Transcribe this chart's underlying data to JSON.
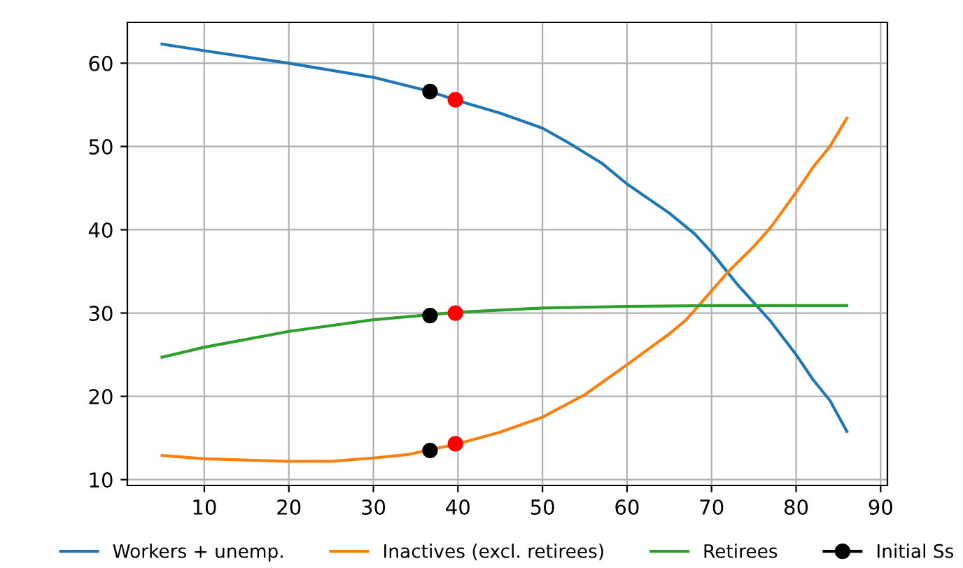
{
  "chart_data": {
    "type": "line",
    "xlim": [
      0.9,
      90.8
    ],
    "ylim": [
      9.3,
      64.9
    ],
    "xticks": [
      10,
      20,
      30,
      40,
      50,
      60,
      70,
      80,
      90
    ],
    "yticks": [
      10,
      20,
      30,
      40,
      50,
      60
    ],
    "grid": true,
    "legend": "bottom",
    "series": [
      {
        "name": "Workers + unemp.",
        "color": "#1f77b4",
        "x": [
          5,
          10,
          20,
          30,
          36.7,
          40,
          45,
          50,
          53,
          57,
          60,
          65,
          68,
          70,
          73,
          77,
          80,
          82,
          84,
          86
        ],
        "values": [
          62.3,
          61.5,
          60.0,
          58.3,
          56.6,
          55.5,
          54,
          52.2,
          50.5,
          48,
          45.5,
          42,
          39.5,
          37.3,
          33.5,
          29,
          25,
          22,
          19.5,
          15.8
        ]
      },
      {
        "name": "Inactives (excl. retirees)",
        "color": "#ff7f0e",
        "x": [
          5,
          10,
          20,
          25,
          30,
          34,
          40,
          45,
          50,
          55,
          60,
          65,
          67,
          69,
          72,
          75,
          77,
          80,
          82,
          84,
          86
        ],
        "values": [
          12.9,
          12.5,
          12.2,
          12.2,
          12.6,
          13.0,
          14.3,
          15.7,
          17.5,
          20.2,
          23.8,
          27.5,
          29.2,
          31.5,
          35,
          38,
          40.3,
          44.5,
          47.5,
          50,
          53.4
        ]
      },
      {
        "name": "Retirees",
        "color": "#2ca02c",
        "x": [
          5,
          10,
          20,
          30,
          36.7,
          40,
          50,
          60,
          70,
          86
        ],
        "values": [
          24.7,
          25.9,
          27.8,
          29.2,
          29.8,
          30.1,
          30.6,
          30.8,
          30.9,
          30.9
        ]
      },
      {
        "name": "Initial Ss",
        "type": "scatter",
        "marker": "circle",
        "color": "#000000",
        "x": [
          36.7,
          36.7,
          36.7
        ],
        "values": [
          56.6,
          29.7,
          13.5
        ]
      },
      {
        "type": "scatter",
        "marker": "circle",
        "color": "#ff0000",
        "x": [
          39.7,
          39.7,
          39.7
        ],
        "values": [
          55.6,
          30.0,
          14.3
        ]
      }
    ]
  }
}
